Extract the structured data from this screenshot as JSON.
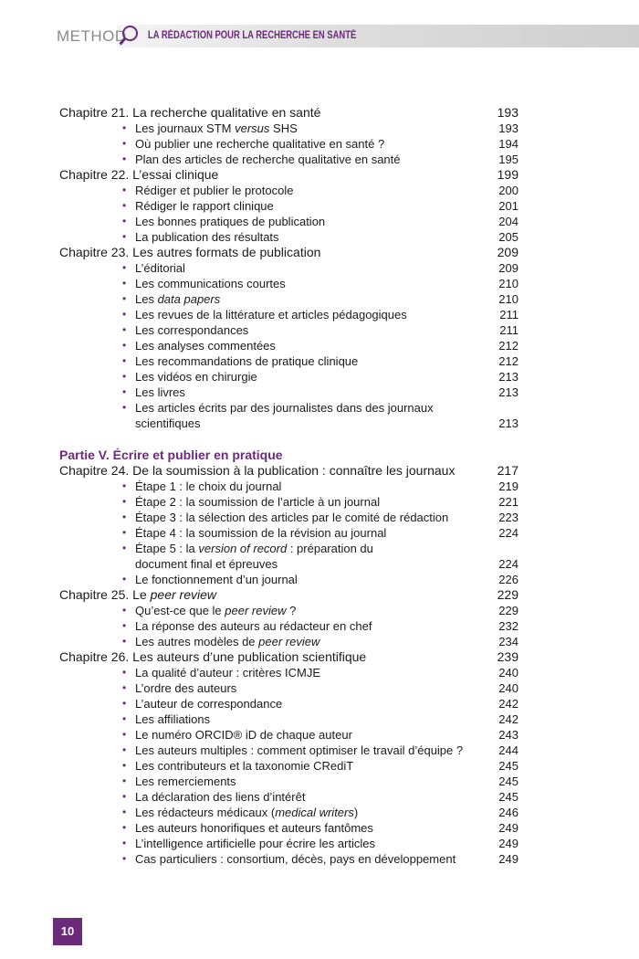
{
  "header": {
    "logo_text": "METHOD",
    "title": "LA RÉDACTION POUR LA RECHERCHE EN SANTÉ",
    "accent": "#6b2a7a"
  },
  "sections": [
    {
      "type": "ch",
      "pre": "Chapitre 21. La recherche qualitative en santé",
      "page": "193"
    },
    {
      "type": "item",
      "pre": "Les journaux STM ",
      "it": "versus",
      "post": " SHS",
      "page": "193"
    },
    {
      "type": "item",
      "pre": "Où publier une recherche qualitative en santé ?",
      "page": "194"
    },
    {
      "type": "item",
      "pre": "Plan des articles de recherche qualitative en santé",
      "page": "195"
    },
    {
      "type": "ch",
      "pre": "Chapitre 22. L’essai clinique",
      "page": "199"
    },
    {
      "type": "item",
      "pre": "Rédiger et publier le protocole",
      "page": "200"
    },
    {
      "type": "item",
      "pre": "Rédiger le rapport clinique",
      "page": "201"
    },
    {
      "type": "item",
      "pre": "Les bonnes pratiques de publication",
      "page": "204"
    },
    {
      "type": "item",
      "pre": "La publication des résultats",
      "page": "205"
    },
    {
      "type": "ch",
      "pre": "Chapitre 23. Les autres formats de publication",
      "page": "209"
    },
    {
      "type": "item",
      "pre": "L’éditorial",
      "page": "209"
    },
    {
      "type": "item",
      "pre": "Les communications courtes",
      "page": "210"
    },
    {
      "type": "item",
      "pre": "Les ",
      "it": "data papers",
      "page": "210"
    },
    {
      "type": "item",
      "pre": "Les revues de la littérature et articles pédagogiques",
      "page": "211"
    },
    {
      "type": "item",
      "pre": "Les correspondances",
      "page": "211"
    },
    {
      "type": "item",
      "pre": "Les analyses commentées",
      "page": "212"
    },
    {
      "type": "item",
      "pre": "Les recommandations de pratique clinique",
      "page": "212"
    },
    {
      "type": "item",
      "pre": "Les vidéos en chirurgie",
      "page": "213"
    },
    {
      "type": "item",
      "pre": "Les livres",
      "page": "213"
    },
    {
      "type": "item",
      "pre": "Les articles écrits par des journalistes dans des journaux scientifiques",
      "page": "213"
    },
    {
      "type": "gap"
    },
    {
      "type": "part",
      "pre": "Partie V. Écrire et publier en pratique"
    },
    {
      "type": "ch",
      "pre": "Chapitre 24. De la soumission à la publication : connaître les journaux",
      "page": "217"
    },
    {
      "type": "item",
      "pre": "Étape 1 : le choix du journal",
      "page": "219"
    },
    {
      "type": "item",
      "pre": "Étape 2 : la soumission de l’article à un journal",
      "page": "221"
    },
    {
      "type": "item",
      "pre": "Étape 3 : la sélection des articles par le comité de rédaction",
      "page": "223"
    },
    {
      "type": "item",
      "pre": "Étape 4 : la soumission de la révision au journal",
      "page": "224"
    },
    {
      "type": "item2",
      "pre": "Étape 5 : la ",
      "it": "version of record",
      "post": " : préparation du document final et épreuves",
      "page": "224"
    },
    {
      "type": "item",
      "pre": "Le fonctionnement d’un journal",
      "page": "226"
    },
    {
      "type": "ch",
      "pre": "Chapitre 25. Le ",
      "it": "peer review",
      "page": "229"
    },
    {
      "type": "item",
      "pre": "Qu’est-ce que le ",
      "it": "peer review",
      "post": " ?",
      "page": "229"
    },
    {
      "type": "item",
      "pre": "La réponse des auteurs au rédacteur en chef",
      "page": "232"
    },
    {
      "type": "item",
      "pre": "Les autres modèles de ",
      "it": "peer review",
      "page": "234"
    },
    {
      "type": "ch",
      "pre": "Chapitre 26. Les auteurs d’une publication scientifique",
      "page": "239"
    },
    {
      "type": "item",
      "pre": "La qualité d’auteur : critères ICMJE",
      "page": "240"
    },
    {
      "type": "item",
      "pre": "L’ordre des auteurs",
      "page": "240"
    },
    {
      "type": "item",
      "pre": "L’auteur de correspondance",
      "page": "242"
    },
    {
      "type": "item",
      "pre": "Les affiliations",
      "page": "242"
    },
    {
      "type": "item",
      "pre": "Le numéro ORCID® iD de chaque auteur",
      "page": "243"
    },
    {
      "type": "item",
      "pre": "Les auteurs multiples : comment optimiser le travail d’équipe ?",
      "page": "244"
    },
    {
      "type": "item",
      "pre": "Les contributeurs et la taxonomie CRediT",
      "page": "245"
    },
    {
      "type": "item",
      "pre": "Les remerciements",
      "page": "245"
    },
    {
      "type": "item",
      "pre": "La déclaration des liens d’intérêt",
      "page": "245"
    },
    {
      "type": "item",
      "pre": "Les rédacteurs médicaux (",
      "it": "medical writers",
      "post": ")",
      "page": "246"
    },
    {
      "type": "item",
      "pre": "Les auteurs honorifiques et auteurs fantômes",
      "page": "249"
    },
    {
      "type": "item",
      "pre": "L’intelligence artificielle pour écrire les articles",
      "page": "249"
    },
    {
      "type": "item",
      "pre": "Cas particuliers : consortium, décès, pays en développement",
      "page": "249"
    }
  ],
  "footer": {
    "page_number": "10"
  }
}
